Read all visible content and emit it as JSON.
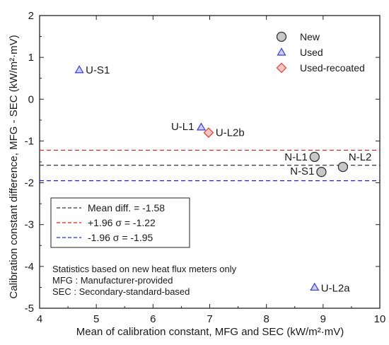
{
  "chart_data": {
    "type": "scatter",
    "xlabel": "Mean of calibration constant, MFG and SEC (kW/m²·mV)",
    "ylabel": "Calibration constant difference, MFG - SEC (kW/m²·mV)",
    "xlim": [
      4,
      10
    ],
    "ylim": [
      -5,
      2
    ],
    "x_ticks": [
      4,
      5,
      6,
      7,
      8,
      9,
      10
    ],
    "y_ticks": [
      -5,
      -4,
      -3,
      -2,
      -1,
      0,
      1,
      2
    ],
    "grid": false,
    "series": [
      {
        "name": "New",
        "marker": "circle",
        "color": "#c8c8c8",
        "stroke": "#333333",
        "points": [
          {
            "label": "N-L1",
            "x": 8.85,
            "y": -1.38
          },
          {
            "label": "N-L2",
            "x": 9.35,
            "y": -1.62
          },
          {
            "label": "N-S1",
            "x": 8.97,
            "y": -1.74
          }
        ]
      },
      {
        "name": "Used",
        "marker": "triangle",
        "color": "#c9cdf2",
        "stroke": "#3a3fcf",
        "points": [
          {
            "label": "U-S1",
            "x": 4.7,
            "y": 0.7
          },
          {
            "label": "U-L1",
            "x": 6.85,
            "y": -0.67
          },
          {
            "label": "U-L2a",
            "x": 8.85,
            "y": -4.5
          }
        ]
      },
      {
        "name": "Used-recoated",
        "marker": "diamond",
        "color": "#f6c6c4",
        "stroke": "#d9413b",
        "points": [
          {
            "label": "U-L2b",
            "x": 6.98,
            "y": -0.8
          }
        ]
      }
    ],
    "reference_lines": [
      {
        "label": "Mean diff. = -1.58",
        "y": -1.58,
        "color": "#333333"
      },
      {
        "label": "+1.96 σ = -1.22",
        "y": -1.22,
        "color": "#e02020"
      },
      {
        "label": "-1.96 σ = -1.95",
        "y": -1.95,
        "color": "#2020e0"
      }
    ],
    "annotations": [
      "Statistics based on new heat flux meters only",
      "MFG : Manufacturer-provided",
      "SEC : Secondary-standard-based"
    ],
    "legend_position": "top-right"
  }
}
